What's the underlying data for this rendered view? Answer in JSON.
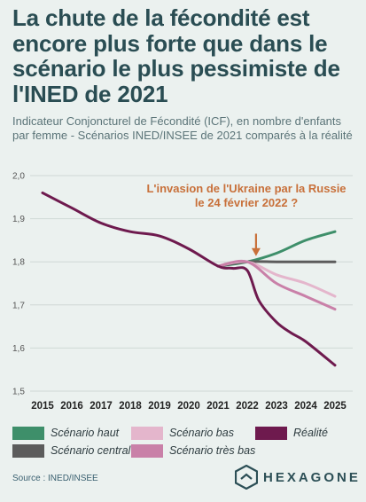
{
  "header": {
    "title": "La chute de la fécondité est encore plus forte que dans le scénario le plus pessimiste de l'INED de 2021",
    "subtitle": "Indicateur Conjoncturel de Fécondité (ICF), en nombre d'enfants par femme - Scénarios INED/INSEE de 2021 comparés à la réalité"
  },
  "chart_data": {
    "type": "line",
    "x": [
      2015,
      2016,
      2017,
      2018,
      2019,
      2020,
      2021,
      2022,
      2023,
      2024,
      2025
    ],
    "xlim": [
      2015,
      2025
    ],
    "ylim": [
      1.5,
      2.0
    ],
    "yticks": [
      "2,0",
      "1,9",
      "1,8",
      "1,7",
      "1,6",
      "1,5"
    ],
    "xticks": [
      "2015",
      "2016",
      "2017",
      "2018",
      "2019",
      "2020",
      "2021",
      "2022",
      "2023",
      "2024",
      "2025"
    ],
    "grid": true,
    "legend_position": "bottom",
    "series": [
      {
        "name": "Réalité",
        "color": "#6e1a4e",
        "points": [
          [
            2015,
            1.96
          ],
          [
            2016,
            1.925
          ],
          [
            2017,
            1.89
          ],
          [
            2018,
            1.87
          ],
          [
            2019,
            1.86
          ],
          [
            2020,
            1.83
          ],
          [
            2021,
            1.79
          ],
          [
            2021.5,
            1.785
          ],
          [
            2022,
            1.78
          ],
          [
            2022.4,
            1.71
          ],
          [
            2023,
            1.66
          ],
          [
            2023.5,
            1.635
          ],
          [
            2024,
            1.615
          ],
          [
            2025,
            1.56
          ]
        ]
      },
      {
        "name": "Scénario haut",
        "color": "#3e8f6a",
        "points": [
          [
            2021,
            1.79
          ],
          [
            2022,
            1.8
          ],
          [
            2023,
            1.82
          ],
          [
            2024,
            1.85
          ],
          [
            2025,
            1.87
          ]
        ]
      },
      {
        "name": "Scénario central",
        "color": "#5c5c5c",
        "points": [
          [
            2021,
            1.79
          ],
          [
            2022,
            1.8
          ],
          [
            2023,
            1.8
          ],
          [
            2024,
            1.8
          ],
          [
            2025,
            1.8
          ]
        ]
      },
      {
        "name": "Scénario bas",
        "color": "#e4b6cc",
        "points": [
          [
            2021,
            1.79
          ],
          [
            2022,
            1.8
          ],
          [
            2023,
            1.77
          ],
          [
            2024,
            1.75
          ],
          [
            2025,
            1.72
          ]
        ]
      },
      {
        "name": "Scénario très bas",
        "color": "#c980a8",
        "points": [
          [
            2021,
            1.79
          ],
          [
            2022,
            1.8
          ],
          [
            2023,
            1.75
          ],
          [
            2024,
            1.72
          ],
          [
            2025,
            1.69
          ]
        ]
      }
    ],
    "annotation": {
      "text_line1": "L'invasion de l'Ukraine par la Russie",
      "text_line2": "le 24 février 2022 ?",
      "color": "#c8703a",
      "arrow_x": 2022.3,
      "arrow_from_y": 1.89,
      "arrow_to_y": 1.805
    }
  },
  "legend": {
    "items": [
      {
        "label": "Scénario haut",
        "color": "#3e8f6a"
      },
      {
        "label": "Scénario bas",
        "color": "#e4b6cc"
      },
      {
        "label": "Réalité",
        "color": "#6e1a4e"
      },
      {
        "label": "Scénario central",
        "color": "#5c5c5c"
      },
      {
        "label": "Scénario très bas",
        "color": "#c980a8"
      }
    ]
  },
  "footer": {
    "source": "Source : INED/INSEE",
    "brand": "HEXAGONE",
    "brand_icon": "hexagone-logo-icon"
  }
}
